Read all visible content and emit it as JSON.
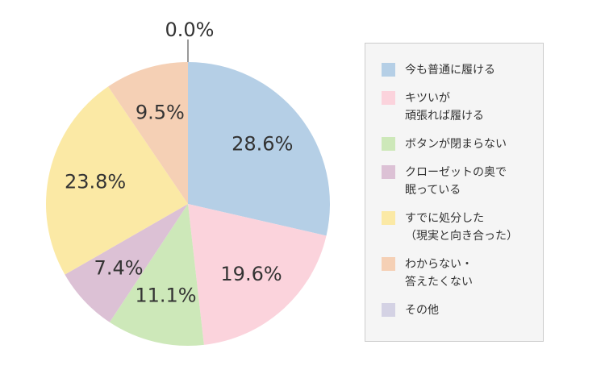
{
  "chart_data": {
    "type": "pie",
    "categories": [
      "今も普通に履ける",
      "キツいが\n頑張れば履ける",
      "ボタンが閉まらない",
      "クローゼットの奥で\n眠っている",
      "すでに処分した\n（現実と向き合った）",
      "わからない・\n答えたくない",
      "その他"
    ],
    "values": [
      28.6,
      19.6,
      11.1,
      7.4,
      23.8,
      9.5,
      0.0
    ],
    "value_labels": [
      "28.6%",
      "19.6%",
      "11.1%",
      "7.4%",
      "23.8%",
      "9.5%",
      "0.0%"
    ],
    "colors": [
      "#b5cfe6",
      "#fbd3dc",
      "#cde8b9",
      "#dcc1d5",
      "#fbe9a5",
      "#f5d0b5",
      "#d4d2e4"
    ]
  }
}
